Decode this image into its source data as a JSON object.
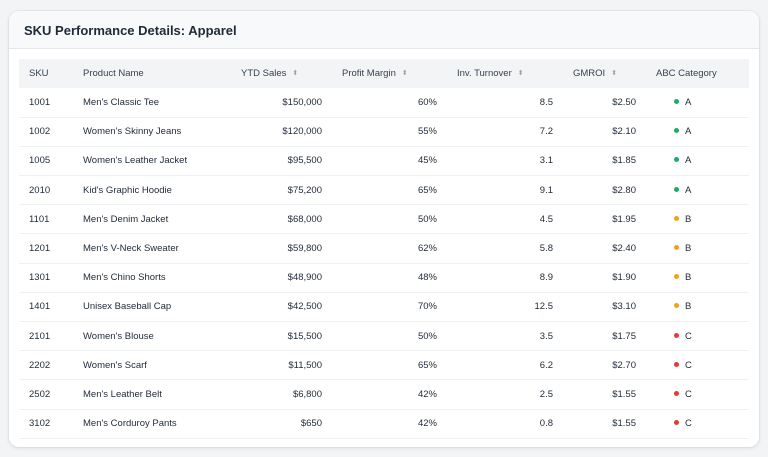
{
  "title": "SKU Performance Details: Apparel",
  "columns": {
    "sku": "SKU",
    "product": "Product Name",
    "ytd_sales": "YTD Sales",
    "profit_margin": "Profit Margin",
    "inv_turnover": "Inv. Turnover",
    "gmroi": "GMROI",
    "abc": "ABC Category"
  },
  "sort_icon": "sort-updown-icon",
  "colors": {
    "A": "#22a86b",
    "B": "#f0a020",
    "C": "#e03a3a"
  },
  "rows": [
    {
      "sku": "1001",
      "product": "Men's Classic Tee",
      "ytd_sales": "$150,000",
      "profit_margin": "60%",
      "inv_turnover": "8.5",
      "gmroi": "$2.50",
      "abc": "A"
    },
    {
      "sku": "1002",
      "product": "Women's Skinny Jeans",
      "ytd_sales": "$120,000",
      "profit_margin": "55%",
      "inv_turnover": "7.2",
      "gmroi": "$2.10",
      "abc": "A"
    },
    {
      "sku": "1005",
      "product": "Women's Leather Jacket",
      "ytd_sales": "$95,500",
      "profit_margin": "45%",
      "inv_turnover": "3.1",
      "gmroi": "$1.85",
      "abc": "A"
    },
    {
      "sku": "2010",
      "product": "Kid's Graphic Hoodie",
      "ytd_sales": "$75,200",
      "profit_margin": "65%",
      "inv_turnover": "9.1",
      "gmroi": "$2.80",
      "abc": "A"
    },
    {
      "sku": "1101",
      "product": "Men's Denim Jacket",
      "ytd_sales": "$68,000",
      "profit_margin": "50%",
      "inv_turnover": "4.5",
      "gmroi": "$1.95",
      "abc": "B"
    },
    {
      "sku": "1201",
      "product": "Men's V-Neck Sweater",
      "ytd_sales": "$59,800",
      "profit_margin": "62%",
      "inv_turnover": "5.8",
      "gmroi": "$2.40",
      "abc": "B"
    },
    {
      "sku": "1301",
      "product": "Men's Chino Shorts",
      "ytd_sales": "$48,900",
      "profit_margin": "48%",
      "inv_turnover": "8.9",
      "gmroi": "$1.90",
      "abc": "B"
    },
    {
      "sku": "1401",
      "product": "Unisex Baseball Cap",
      "ytd_sales": "$42,500",
      "profit_margin": "70%",
      "inv_turnover": "12.5",
      "gmroi": "$3.10",
      "abc": "B"
    },
    {
      "sku": "2101",
      "product": "Women's Blouse",
      "ytd_sales": "$15,500",
      "profit_margin": "50%",
      "inv_turnover": "3.5",
      "gmroi": "$1.75",
      "abc": "C"
    },
    {
      "sku": "2202",
      "product": "Women's Scarf",
      "ytd_sales": "$11,500",
      "profit_margin": "65%",
      "inv_turnover": "6.2",
      "gmroi": "$2.70",
      "abc": "C"
    },
    {
      "sku": "2502",
      "product": "Men's Leather Belt",
      "ytd_sales": "$6,800",
      "profit_margin": "42%",
      "inv_turnover": "2.5",
      "gmroi": "$1.55",
      "abc": "C"
    },
    {
      "sku": "3102",
      "product": "Men's Corduroy Pants",
      "ytd_sales": "$650",
      "profit_margin": "42%",
      "inv_turnover": "0.8",
      "gmroi": "$1.55",
      "abc": "C"
    }
  ]
}
